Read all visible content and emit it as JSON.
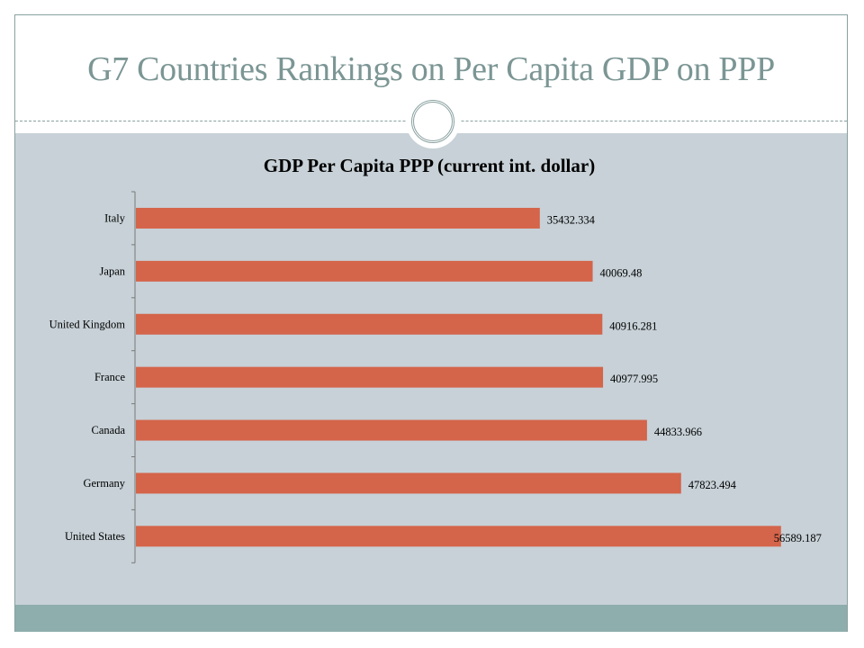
{
  "slide": {
    "title": "G7 Countries Rankings on Per Capita GDP on PPP"
  },
  "colors": {
    "bar": "#d4644a",
    "background": "#c7d1d7",
    "footer": "#8eadad",
    "title": "#7b9694"
  },
  "chart_data": {
    "type": "bar",
    "orientation": "horizontal",
    "title": "GDP Per Capita PPP (current int. dollar)",
    "xlabel": "",
    "ylabel": "",
    "categories": [
      "Italy",
      "Japan",
      "United Kingdom",
      "France",
      "Canada",
      "Germany",
      "United States"
    ],
    "values": [
      35432.334,
      40069.48,
      40916.281,
      40977.995,
      44833.966,
      47823.494,
      56589.187
    ],
    "value_labels": [
      "35432.334",
      "40069.48",
      "40916.281",
      "40977.995",
      "44833.966",
      "47823.494",
      "56589.187"
    ],
    "xlim": [
      0,
      60000
    ],
    "grid": false,
    "legend": "none"
  }
}
